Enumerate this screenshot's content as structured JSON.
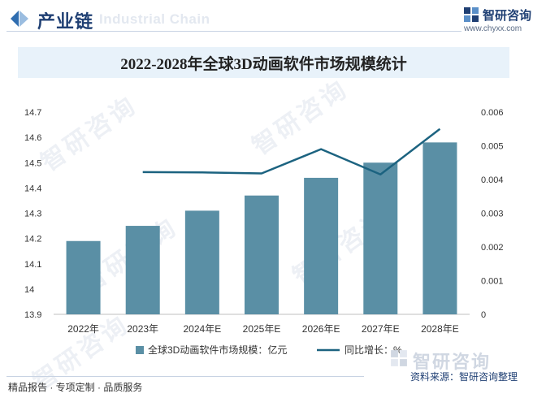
{
  "header": {
    "title": "产业链",
    "watermark": "Industrial Chain",
    "brand_name": "智研咨询",
    "brand_url": "www.chyxx.com"
  },
  "chart_title": "2022-2028年全球3D动画软件市场规模统计",
  "watermark_text": "智研咨询",
  "footer": {
    "left": "精品报告 · 专项定制 · 品质服务",
    "brand": "智研咨询",
    "source": "资料来源：智研咨询整理"
  },
  "colors": {
    "bar": "#5a8fa5",
    "line": "#1c6380",
    "brand": "#1f3f73"
  },
  "chart_data": {
    "type": "bar",
    "categories": [
      "2022年",
      "2023年",
      "2024年E",
      "2025年E",
      "2026年E",
      "2027年E",
      "2028年E"
    ],
    "series": [
      {
        "name": "全球3D动画软件市场规模：亿元",
        "type": "bar",
        "axis": "left",
        "values": [
          14.19,
          14.25,
          14.31,
          14.37,
          14.44,
          14.5,
          14.58
        ]
      },
      {
        "name": "同比增长：%",
        "type": "line",
        "axis": "right",
        "values": [
          null,
          0.00422,
          0.00421,
          0.00418,
          0.0049,
          0.00415,
          0.0055
        ]
      }
    ],
    "y_left": {
      "min": 13.9,
      "max": 14.7,
      "ticks": [
        "13.9",
        "14",
        "14.1",
        "14.2",
        "14.3",
        "14.4",
        "14.5",
        "14.6",
        "14.7"
      ]
    },
    "y_right": {
      "min": 0,
      "max": 0.006,
      "ticks": [
        "0",
        "0.001",
        "0.002",
        "0.003",
        "0.004",
        "0.005",
        "0.006"
      ]
    },
    "legend_position": "bottom",
    "grid": false
  }
}
